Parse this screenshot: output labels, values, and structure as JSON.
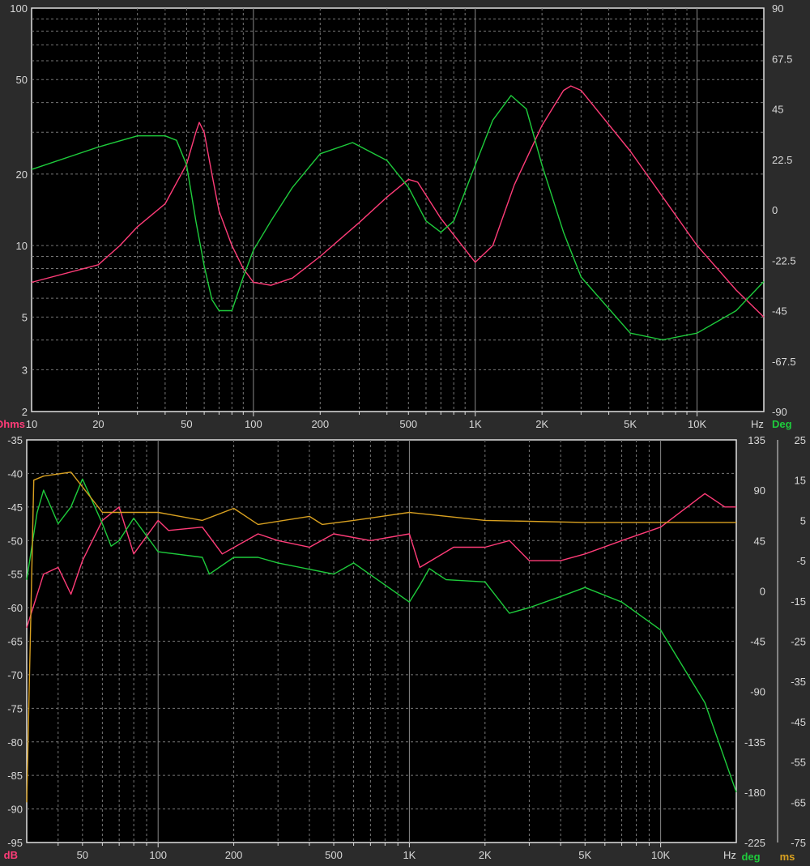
{
  "chart_data": [
    {
      "type": "line",
      "xscale": "log",
      "xlim": [
        10,
        20000
      ],
      "ylim_left": [
        2,
        100
      ],
      "yscale_left": "log",
      "ylim_right": [
        -90,
        90
      ],
      "left_unit": "Ohms",
      "right_unit": "Deg",
      "x_unit": "Hz",
      "grid": true,
      "x_ticks": [
        "10",
        "20",
        "50",
        "100",
        "200",
        "500",
        "1K",
        "2K",
        "5K",
        "10K"
      ],
      "left_ticks": [
        "100",
        "50",
        "20",
        "10",
        "5",
        "3",
        "2"
      ],
      "right_ticks": [
        "90",
        "67.5",
        "45",
        "22.5",
        "0",
        "-22.5",
        "-45",
        "-67.5",
        "-90"
      ],
      "series": [
        {
          "axis": "left",
          "color": "#ff3c78",
          "x": [
            10,
            20,
            25,
            30,
            40,
            50,
            55,
            57,
            60,
            65,
            70,
            80,
            90,
            100,
            120,
            150,
            200,
            300,
            400,
            500,
            550,
            700,
            1000,
            1200,
            1500,
            2000,
            2500,
            2700,
            3000,
            5000,
            10000,
            15000,
            20000
          ],
          "y": [
            7,
            8.3,
            10,
            12,
            15,
            22,
            30,
            33,
            30,
            20,
            14,
            10,
            8,
            7,
            6.8,
            7.3,
            9,
            12.5,
            16,
            19,
            18.5,
            13,
            8.5,
            10,
            18,
            32,
            45,
            47,
            45,
            25,
            10,
            6.5,
            5
          ]
        },
        {
          "axis": "right",
          "color": "#1ecc3c",
          "x": [
            10,
            20,
            30,
            40,
            45,
            50,
            55,
            60,
            65,
            70,
            80,
            90,
            100,
            120,
            150,
            200,
            280,
            400,
            500,
            600,
            700,
            800,
            1000,
            1200,
            1450,
            1700,
            2000,
            2500,
            3000,
            5000,
            7000,
            10000,
            15000,
            20000
          ],
          "y": [
            18,
            28,
            33,
            33,
            31,
            20,
            -5,
            -25,
            -40,
            -45,
            -45,
            -30,
            -18,
            -5,
            10,
            25,
            30,
            22,
            10,
            -5,
            -10,
            -5,
            20,
            40,
            51,
            45,
            20,
            -10,
            -30,
            -55,
            -58,
            -55,
            -45,
            -32
          ]
        }
      ]
    },
    {
      "type": "line",
      "xscale": "log",
      "xlim": [
        30,
        20000
      ],
      "ylim_left": [
        -95,
        -35
      ],
      "ylim_mid": [
        -225,
        135
      ],
      "ylim_right": [
        -75,
        25
      ],
      "left_unit": "dB",
      "mid_unit": "deg",
      "right_unit": "ms",
      "x_unit": "Hz",
      "grid": true,
      "x_ticks": [
        "50",
        "100",
        "200",
        "500",
        "1K",
        "2K",
        "5K",
        "10K"
      ],
      "left_ticks": [
        "-35",
        "-40",
        "-45",
        "-50",
        "-55",
        "-60",
        "-65",
        "-70",
        "-75",
        "-80",
        "-85",
        "-90",
        "-95"
      ],
      "mid_ticks": [
        "135",
        "90",
        "45",
        "0",
        "-45",
        "-90",
        "-135",
        "-180",
        "-225"
      ],
      "right_ticks": [
        "25",
        "15",
        "5",
        "-5",
        "-15",
        "-25",
        "-35",
        "-45",
        "-55",
        "-65",
        "-75"
      ],
      "series": [
        {
          "axis": "left",
          "color": "#ff3c78",
          "x": [
            30,
            35,
            40,
            45,
            50,
            60,
            70,
            80,
            100,
            110,
            150,
            180,
            250,
            300,
            400,
            500,
            700,
            1000,
            1100,
            1500,
            2000,
            2500,
            3000,
            4000,
            5000,
            7000,
            10000,
            15000,
            18000,
            20000
          ],
          "y": [
            -63,
            -55,
            -54,
            -58,
            -53,
            -47,
            -45,
            -52,
            -47,
            -48.5,
            -48,
            -52,
            -49,
            -50,
            -51,
            -49,
            -50,
            -49,
            -54,
            -51,
            -51,
            -50,
            -53,
            -53,
            -52,
            -50,
            -48,
            -43,
            -45,
            -45
          ]
        },
        {
          "axis": "mid",
          "color": "#1ecc3c",
          "x": [
            30,
            33,
            35,
            40,
            45,
            50,
            60,
            65,
            70,
            80,
            100,
            150,
            160,
            200,
            250,
            300,
            500,
            600,
            1000,
            1100,
            1200,
            1400,
            2000,
            2500,
            3000,
            4000,
            5000,
            7000,
            10000,
            15000,
            20000
          ],
          "y": [
            10,
            70,
            90,
            60,
            75,
            100,
            60,
            40,
            45,
            65,
            35,
            30,
            15,
            30,
            30,
            25,
            15,
            25,
            -10,
            5,
            20,
            10,
            8,
            -20,
            -15,
            -5,
            3,
            -10,
            -35,
            -100,
            -180
          ]
        },
        {
          "axis": "right",
          "color": "#d8a020",
          "x": [
            30,
            32,
            35,
            45,
            60,
            100,
            150,
            200,
            250,
            400,
            450,
            600,
            1000,
            2000,
            5000,
            10000,
            20000
          ],
          "y": [
            -65,
            15,
            16,
            17,
            7,
            7,
            5,
            8,
            4,
            6,
            4,
            5,
            7,
            5,
            4.5,
            4.5,
            4.5
          ]
        }
      ]
    }
  ]
}
